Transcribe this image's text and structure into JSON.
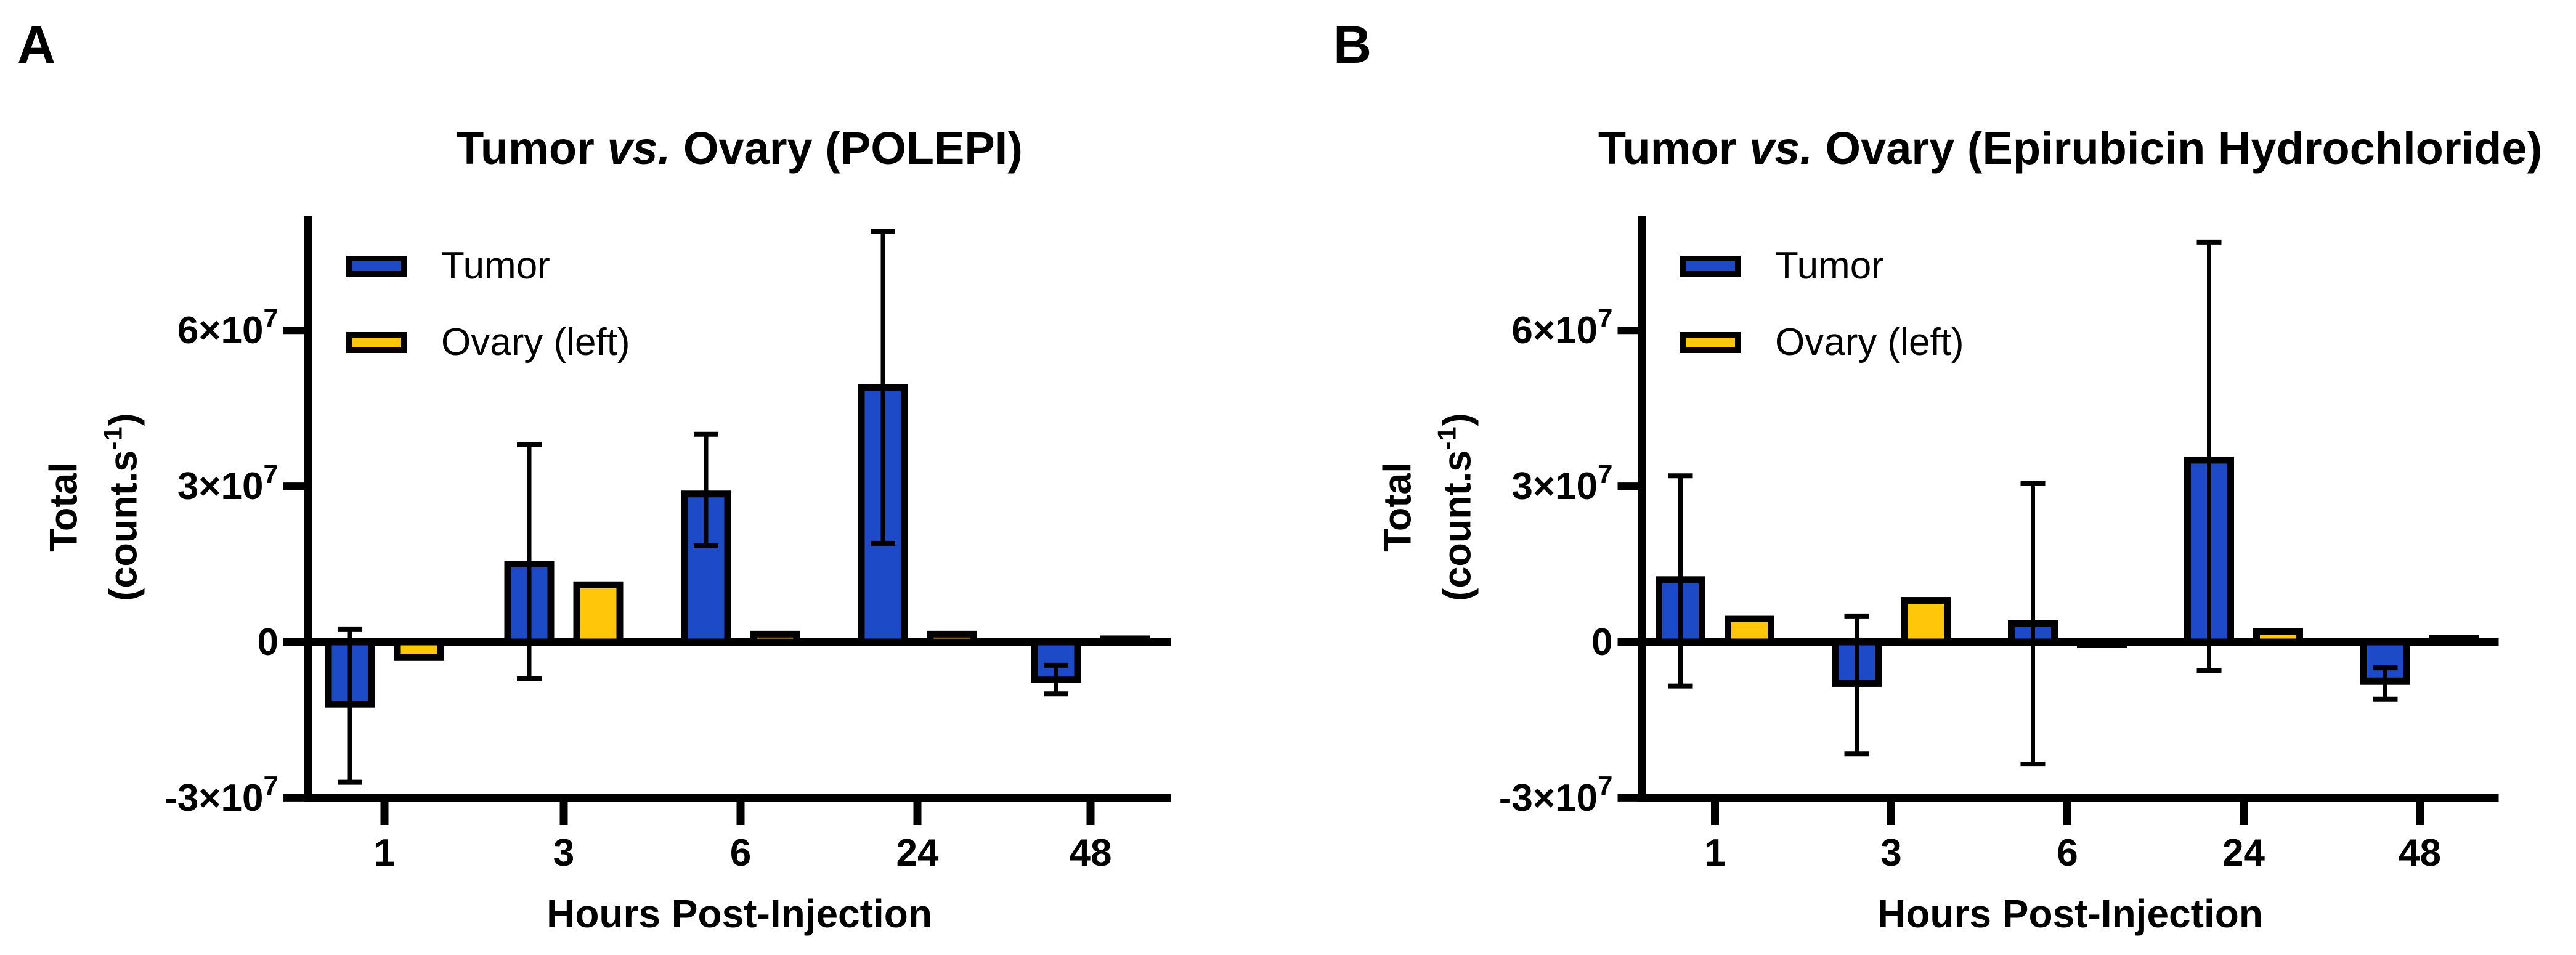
{
  "app": {
    "background": "#ffffff"
  },
  "colors": {
    "tumor": "#1D4BC8",
    "ovary": "#FFC60A",
    "axis": "#000000"
  },
  "panels": [
    {
      "letter": "A",
      "title_prefix": "Tumor ",
      "title_italic": "vs.",
      "title_suffix": " Ovary (POLEPI)"
    },
    {
      "letter": "B",
      "title_prefix": "Tumor ",
      "title_italic": "vs.",
      "title_suffix": " Ovary (Epirubicin Hydrochloride)"
    }
  ],
  "chart_data": [
    {
      "type": "bar",
      "title": "Tumor vs. Ovary (POLEPI)",
      "xlabel": "Hours Post-Injection",
      "ylabel": "Total (count.s⁻¹)",
      "ylabel_lines": {
        "line1": "Total",
        "line2_pre": "(count.s",
        "line2_sup": "-1",
        "line2_post": ")"
      },
      "value_unit": "×10⁷ count·s⁻¹",
      "categories": [
        "1",
        "3",
        "6",
        "24",
        "48"
      ],
      "series": [
        {
          "name": "Tumor",
          "color": "#1D4BC8",
          "values": [
            -1.2,
            1.5,
            2.85,
            4.9,
            -0.72
          ],
          "errors": [
            {
              "hi": 0.25,
              "lo": -2.7
            },
            {
              "hi": 3.8,
              "lo": -0.7
            },
            {
              "hi": 4.0,
              "lo": 1.85
            },
            {
              "hi": 7.9,
              "lo": 1.9
            },
            {
              "hi": -0.45,
              "lo": -1.0
            }
          ]
        },
        {
          "name": "Ovary (left)",
          "color": "#FFC60A",
          "values": [
            -0.3,
            1.1,
            0.15,
            0.15,
            0.06
          ],
          "errors": [
            null,
            null,
            null,
            null,
            null
          ]
        }
      ],
      "ylim": [
        -3,
        8.2
      ],
      "yticks": [
        {
          "value": -3,
          "mantissa": "-3×10",
          "exp": "7"
        },
        {
          "value": 0,
          "mantissa": "0",
          "exp": ""
        },
        {
          "value": 3,
          "mantissa": "3×10",
          "exp": "7"
        },
        {
          "value": 6,
          "mantissa": "6×10",
          "exp": "7"
        }
      ],
      "legend": {
        "position": "top-left",
        "entries": [
          "Tumor",
          "Ovary (left)"
        ]
      },
      "grid": false
    },
    {
      "type": "bar",
      "title": "Tumor vs. Ovary (Epirubicin Hydrochloride)",
      "xlabel": "Hours Post-Injection",
      "ylabel": "Total (count.s⁻¹)",
      "ylabel_lines": {
        "line1": "Total",
        "line2_pre": "(count.s",
        "line2_sup": "-1",
        "line2_post": ")"
      },
      "value_unit": "×10⁷ count·s⁻¹",
      "categories": [
        "1",
        "3",
        "6",
        "24",
        "48"
      ],
      "series": [
        {
          "name": "Tumor",
          "color": "#1D4BC8",
          "values": [
            1.2,
            -0.8,
            0.35,
            3.5,
            -0.75
          ],
          "errors": [
            {
              "hi": 3.2,
              "lo": -0.85
            },
            {
              "hi": 0.5,
              "lo": -2.15
            },
            {
              "hi": 3.05,
              "lo": -2.35
            },
            {
              "hi": 7.7,
              "lo": -0.55
            },
            {
              "hi": -0.5,
              "lo": -1.1
            }
          ]
        },
        {
          "name": "Ovary (left)",
          "color": "#FFC60A",
          "values": [
            0.45,
            0.8,
            -0.05,
            0.2,
            0.07
          ],
          "errors": [
            null,
            null,
            null,
            null,
            null
          ]
        }
      ],
      "ylim": [
        -3,
        8.2
      ],
      "yticks": [
        {
          "value": -3,
          "mantissa": "-3×10",
          "exp": "7"
        },
        {
          "value": 0,
          "mantissa": "0",
          "exp": ""
        },
        {
          "value": 3,
          "mantissa": "3×10",
          "exp": "7"
        },
        {
          "value": 6,
          "mantissa": "6×10",
          "exp": "7"
        }
      ],
      "legend": {
        "position": "top-left",
        "entries": [
          "Tumor",
          "Ovary (left)"
        ]
      },
      "grid": false
    }
  ]
}
